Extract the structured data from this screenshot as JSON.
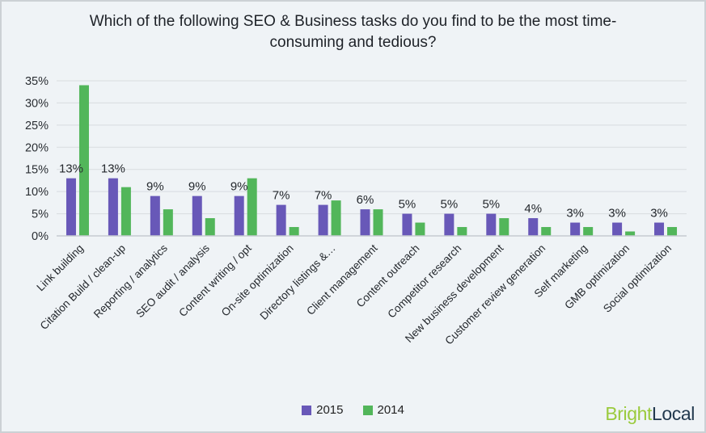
{
  "title": "Which of the following SEO & Business tasks do you find to be the most time-consuming and tedious?",
  "chart_data": {
    "type": "bar",
    "categories": [
      "Link building",
      "Citation Build / clean-up",
      "Reporting / analytics",
      "SEO audit / analysis",
      "Content writing / opt",
      "On-site optimization",
      "Directory listings &…",
      "Client management",
      "Content outreach",
      "Competitor research",
      "New business development",
      "Customer review generation",
      "Self marketing",
      "GMB optimization",
      "Social optimization"
    ],
    "series": [
      {
        "name": "2015",
        "color": "#6858b8",
        "values": [
          13,
          13,
          9,
          9,
          9,
          7,
          7,
          6,
          5,
          5,
          5,
          4,
          3,
          3,
          3
        ]
      },
      {
        "name": "2014",
        "color": "#52b65a",
        "values": [
          34,
          11,
          6,
          4,
          13,
          2,
          8,
          6,
          3,
          2,
          4,
          2,
          2,
          1,
          2
        ]
      }
    ],
    "data_labels": [
      "13%",
      "13%",
      "9%",
      "9%",
      "9%",
      "7%",
      "7%",
      "6%",
      "5%",
      "5%",
      "5%",
      "4%",
      "3%",
      "3%",
      "3%"
    ],
    "data_labels_series": "2015",
    "ylim": [
      0,
      35
    ],
    "ytick_step": 5,
    "ytick_suffix": "%",
    "grid": "horizontal",
    "grid_color": "#d8dcdf",
    "axis_color": "#c6cbd0",
    "background_color": "#eff3f6",
    "legend_position": "bottom-center",
    "xlabel": "",
    "ylabel": ""
  },
  "legend": {
    "items": [
      {
        "label": "2015",
        "color": "#6858b8"
      },
      {
        "label": "2014",
        "color": "#52b65a"
      }
    ]
  },
  "branding": {
    "logo_part1": "Bright",
    "logo_part2": "Local",
    "part1_color": "#9aca3c",
    "part2_color": "#22394e"
  }
}
